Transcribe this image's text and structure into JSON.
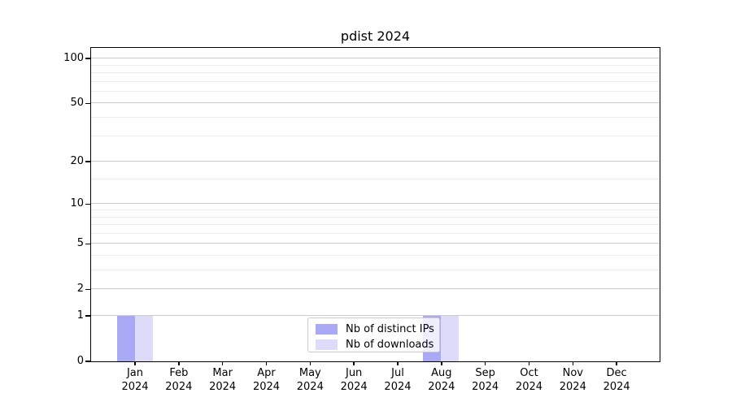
{
  "title": "pdist 2024",
  "colors": {
    "ips": "#a8a8f4",
    "downloads": "#dcdcfa",
    "grid_major": "#cccccc",
    "grid_minor": "#ececec",
    "axis": "#000000",
    "legend_border": "#cccccc"
  },
  "legend": {
    "items": [
      {
        "label": "Nb of distinct IPs",
        "color_key": "ips"
      },
      {
        "label": "Nb of downloads",
        "color_key": "downloads"
      }
    ]
  },
  "chart_data": {
    "type": "bar",
    "title": "pdist 2024",
    "categories": [
      "Jan 2024",
      "Feb 2024",
      "Mar 2024",
      "Apr 2024",
      "May 2024",
      "Jun 2024",
      "Jul 2024",
      "Aug 2024",
      "Sep 2024",
      "Oct 2024",
      "Nov 2024",
      "Dec 2024"
    ],
    "series": [
      {
        "name": "Nb of distinct IPs",
        "color_key": "ips",
        "values": [
          1,
          0,
          0,
          0,
          0,
          0,
          0,
          1,
          0,
          0,
          0,
          0
        ]
      },
      {
        "name": "Nb of downloads",
        "color_key": "downloads",
        "values": [
          1,
          0,
          0,
          0,
          0,
          0,
          0,
          1,
          0,
          0,
          0,
          0
        ]
      }
    ],
    "xlabel": "",
    "ylabel": "",
    "y_scale": "log1p",
    "ylim": [
      0,
      118
    ],
    "y_major_ticks": [
      0,
      1,
      2,
      5,
      10,
      20,
      50,
      100
    ],
    "y_minor_ticks": [
      3,
      4,
      6,
      7,
      8,
      9,
      15,
      30,
      40,
      60,
      70,
      80,
      90
    ],
    "grid": true,
    "legend_position": "lower center"
  }
}
